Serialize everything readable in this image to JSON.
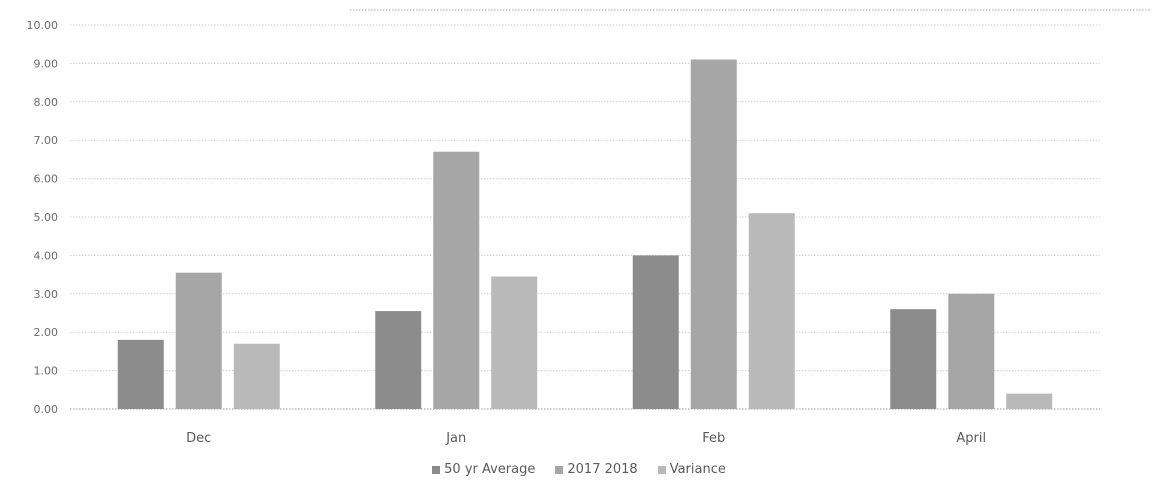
{
  "chart_data": {
    "type": "bar",
    "categories": [
      "Dec",
      "Jan",
      "Feb",
      "April"
    ],
    "series": [
      {
        "name": "50 yr Average",
        "values": [
          1.8,
          2.55,
          4.0,
          2.6
        ],
        "color": "#8c8c8c"
      },
      {
        "name": "2017 2018",
        "values": [
          3.55,
          6.7,
          9.1,
          3.0
        ],
        "color": "#a6a6a6"
      },
      {
        "name": "Variance",
        "values": [
          1.7,
          3.45,
          5.1,
          0.4
        ],
        "color": "#b9b9b9"
      }
    ],
    "y_tick_labels": [
      "0.00",
      "1.00",
      "2.00",
      "3.00",
      "4.00",
      "5.00",
      "6.00",
      "7.00",
      "8.00",
      "9.00",
      "10.00"
    ],
    "ylim": [
      0,
      10
    ],
    "title": "",
    "xlabel": "",
    "ylabel": "",
    "grid": true,
    "legend_position": "bottom"
  }
}
